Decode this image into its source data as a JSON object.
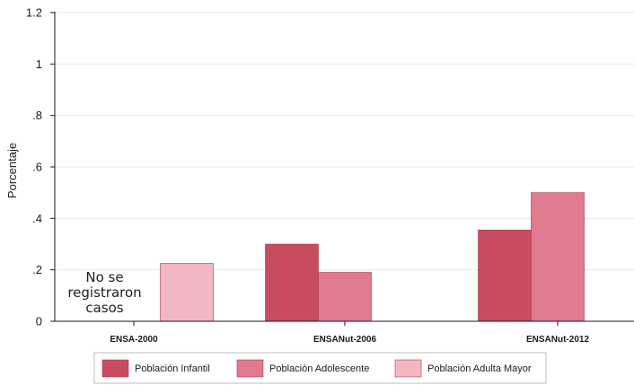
{
  "chart_data": {
    "type": "bar",
    "title": "",
    "xlabel": "",
    "ylabel": "Porcentaje",
    "ylim": [
      0,
      1.2
    ],
    "yticks": [
      0,
      0.2,
      0.4,
      0.6,
      0.8,
      1,
      1.2
    ],
    "ytick_labels": [
      "0",
      ".2",
      ".4",
      ".6",
      ".8",
      "1",
      "1.2"
    ],
    "grid": true,
    "legend_position": "bottom",
    "categories": [
      "ENSA-2000",
      "ENSANut-2006",
      "ENSANut-2012"
    ],
    "series": [
      {
        "name": "Población Infantil",
        "color": "#c84b5f",
        "values": [
          null,
          0.3,
          0.355
        ]
      },
      {
        "name": "Población Adolescente",
        "color": "#e07a8e",
        "values": [
          null,
          0.19,
          0.5
        ]
      },
      {
        "name": "Población Adulta Mayor",
        "color": "#f1b8c2",
        "values": [
          0.225,
          null,
          null
        ]
      }
    ],
    "annotations": [
      {
        "category": "ENSA-2000",
        "lines": [
          "No se",
          "registraron",
          "casos"
        ]
      }
    ]
  }
}
